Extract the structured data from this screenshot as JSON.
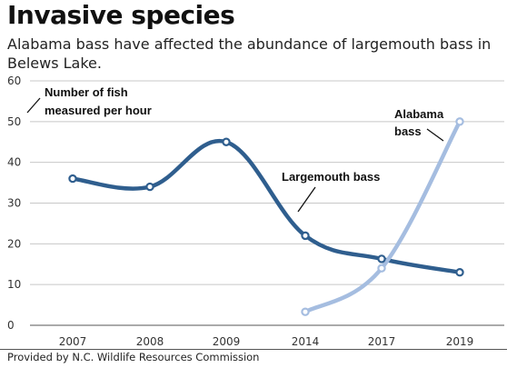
{
  "header": {
    "title": "Invasive species",
    "subtitle": "Alabama bass have affected the abundance of largemouth bass in Belews Lake."
  },
  "footer": {
    "source": "Provided by N.C. Wildlife Resources Commission"
  },
  "colors": {
    "largemouth": "#2f5e8e",
    "alabama": "#a5bde0",
    "grid": "#c8c8c8",
    "axis": "#555555"
  },
  "chart_data": {
    "type": "line",
    "title": "Invasive species",
    "categories": [
      "2007",
      "2008",
      "2009",
      "2014",
      "2017",
      "2019"
    ],
    "ylim": [
      0,
      60
    ],
    "yticks": [
      0,
      10,
      20,
      30,
      40,
      50,
      60
    ],
    "grid": true,
    "ylabel_annotation": [
      "Number of fish",
      "measured per hour"
    ],
    "series": [
      {
        "name": "Largemouth bass",
        "label_lines": [
          "Largemouth bass"
        ],
        "color": "#2f5e8e",
        "values": [
          36,
          34,
          45,
          22,
          16.3,
          13
        ]
      },
      {
        "name": "Alabama bass",
        "label_lines": [
          "Alabama",
          "bass"
        ],
        "color": "#a5bde0",
        "values": [
          null,
          null,
          null,
          3.3,
          14,
          50
        ]
      }
    ]
  }
}
